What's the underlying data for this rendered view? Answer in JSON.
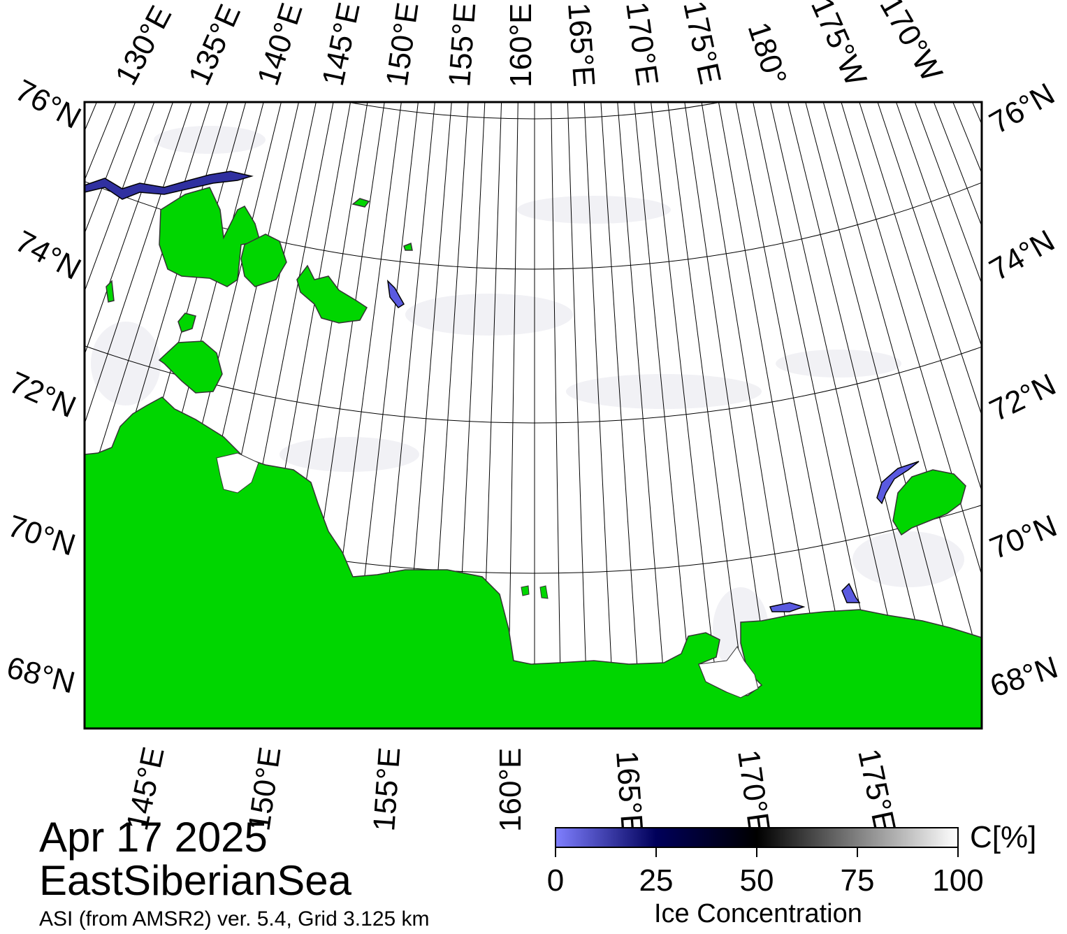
{
  "map": {
    "projection": "polar stereographic",
    "land_color": "#00d600",
    "ocean_color": "#ffffff",
    "frame_color": "#000000",
    "graticule_color": "#000000",
    "lat_labels_left": [
      "76°N",
      "74°N",
      "72°N",
      "70°N",
      "68°N"
    ],
    "lat_labels_right": [
      "76°N",
      "74°N",
      "72°N",
      "70°N",
      "68°N"
    ],
    "lon_labels_top": [
      "130°E",
      "135°E",
      "140°E",
      "145°E",
      "150°E",
      "155°E",
      "160°E",
      "165°E",
      "170°E",
      "175°E",
      "180°",
      "175°W",
      "170°W"
    ],
    "lon_labels_bottom": [
      "145°E",
      "150°E",
      "155°E",
      "160°E",
      "165°E",
      "170°E",
      "175°E"
    ]
  },
  "title": {
    "date": "Apr 17 2025",
    "region": "EastSiberianSea",
    "source": "ASI (from AMSR2) ver. 5.4,  Grid 3.125 km"
  },
  "colorbar": {
    "unit": "C[%]",
    "title": "Ice Concentration",
    "ticks": [
      "0",
      "25",
      "50",
      "75",
      "100"
    ],
    "range": [
      0,
      100
    ],
    "colors": [
      "#7f7fff",
      "#00005a",
      "#000000",
      "#808080",
      "#ffffff"
    ]
  }
}
